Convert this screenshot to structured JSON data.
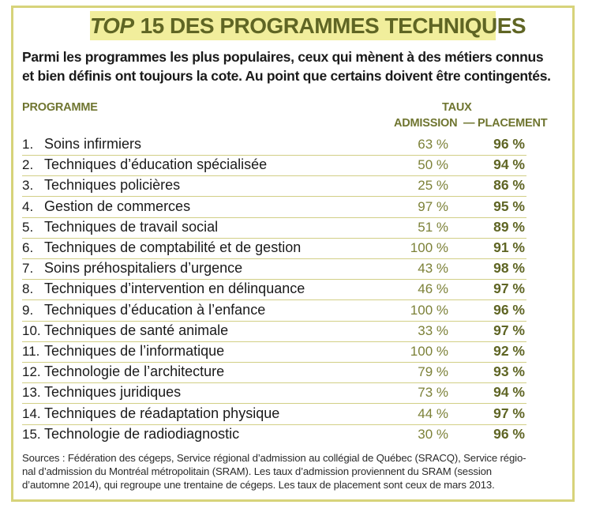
{
  "title": {
    "emphasis": "TOP",
    "rest": "15 DES PROGRAMMES TECHNIQUES"
  },
  "intro": [
    "Parmi les programmes les plus populaires, ceux qui mènent à des métiers connus",
    "et bien définis ont toujours la cote. Au point que certains doivent être contingentés."
  ],
  "headers": {
    "programme": "PROGRAMME",
    "taux": "TAUX",
    "admission": "ADMISSION",
    "dash": "—",
    "placement": "PLACEMENT"
  },
  "rows": [
    {
      "num": "1.",
      "programme": "Soins infirmiers",
      "admission": "63 %",
      "placement": "96 %"
    },
    {
      "num": "2.",
      "programme": "Techniques d’éducation spécialisée",
      "admission": "50 %",
      "placement": "94 %"
    },
    {
      "num": "3.",
      "programme": "Techniques policières",
      "admission": "25 %",
      "placement": "86 %"
    },
    {
      "num": "4.",
      "programme": "Gestion de commerces",
      "admission": "97 %",
      "placement": "95 %"
    },
    {
      "num": "5.",
      "programme": "Techniques de travail social",
      "admission": "51 %",
      "placement": "89 %"
    },
    {
      "num": "6.",
      "programme": "Techniques de comptabilité et de gestion",
      "admission": "100 %",
      "placement": "91 %"
    },
    {
      "num": "7.",
      "programme": "Soins préhospitaliers d’urgence",
      "admission": "43 %",
      "placement": "98 %"
    },
    {
      "num": "8.",
      "programme": "Techniques d’intervention en délinquance",
      "admission": "46 %",
      "placement": "97 %"
    },
    {
      "num": "9.",
      "programme": "Techniques d’éducation à l’enfance",
      "admission": "100 %",
      "placement": "96 %"
    },
    {
      "num": "10.",
      "programme": "Techniques de santé animale",
      "admission": "33 %",
      "placement": "97 %"
    },
    {
      "num": "11.",
      "programme": "Techniques de l’informatique",
      "admission": "100 %",
      "placement": "92 %"
    },
    {
      "num": "12.",
      "programme": "Technologie de l’architecture",
      "admission": "79 %",
      "placement": "93 %"
    },
    {
      "num": "13.",
      "programme": "Techniques juridiques",
      "admission": "73 %",
      "placement": "94 %"
    },
    {
      "num": "14.",
      "programme": "Techniques de réadaptation physique",
      "admission": "44 %",
      "placement": "97 %"
    },
    {
      "num": "15.",
      "programme": "Technologie de radiodiagnostic",
      "admission": "30 %",
      "placement": "96 %"
    }
  ],
  "sources": [
    "Sources : Fédération des cégeps, Service régional d’admission au collégial de Québec (SRACQ), Service régio-",
    "nal d’admission du Montréal métropolitain (SRAM). Les taux d’admission proviennent du SRAM (session",
    "d’automne 2014), qui regroupe une trentaine de cégeps. Les taux de placement sont ceux de mars 2013."
  ],
  "colors": {
    "band": "#f1ee9c",
    "border": "#d7d37a",
    "accent_dark": "#5f6524",
    "accent_mid": "#7c8138"
  }
}
